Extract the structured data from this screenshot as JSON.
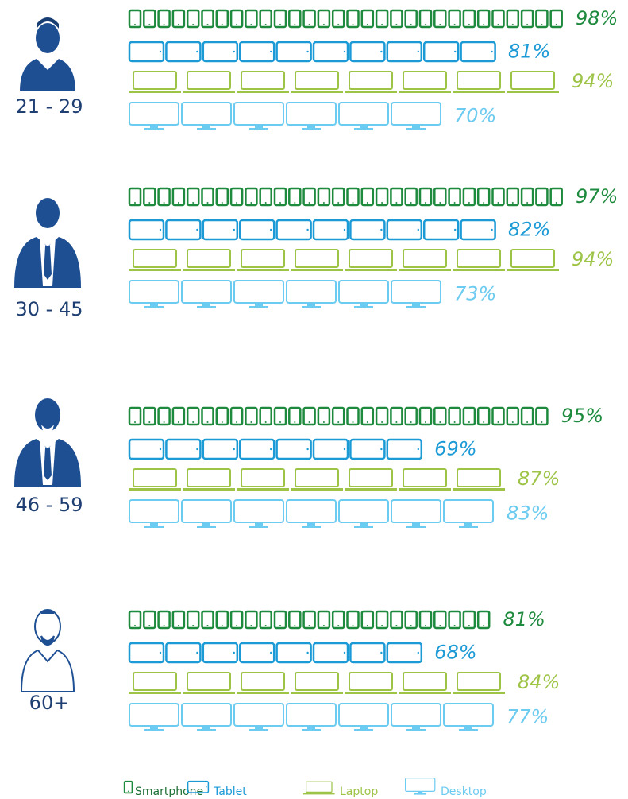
{
  "chart_data": {
    "type": "pictogram",
    "categories": [
      "21 - 29",
      "30 - 45",
      "46 - 59",
      "60+"
    ],
    "series": [
      {
        "name": "Smartphone",
        "color": "#1e8a3e",
        "values": [
          98,
          97,
          95,
          81
        ],
        "value_labels": [
          "98%",
          "97%",
          "95%",
          "81%"
        ]
      },
      {
        "name": "Tablet",
        "color": "#1b9ad6",
        "values": [
          81,
          82,
          69,
          68
        ],
        "value_labels": [
          "81%",
          "82%",
          "69%",
          "68%"
        ]
      },
      {
        "name": "Laptop",
        "color": "#9ec447",
        "values": [
          94,
          94,
          87,
          84
        ],
        "value_labels": [
          "94%",
          "94%",
          "87%",
          "84%"
        ]
      },
      {
        "name": "Desktop",
        "color": "#6ccbf0",
        "values": [
          70,
          73,
          83,
          77
        ],
        "value_labels": [
          "70%",
          "73%",
          "83%",
          "77%"
        ]
      }
    ]
  }
}
